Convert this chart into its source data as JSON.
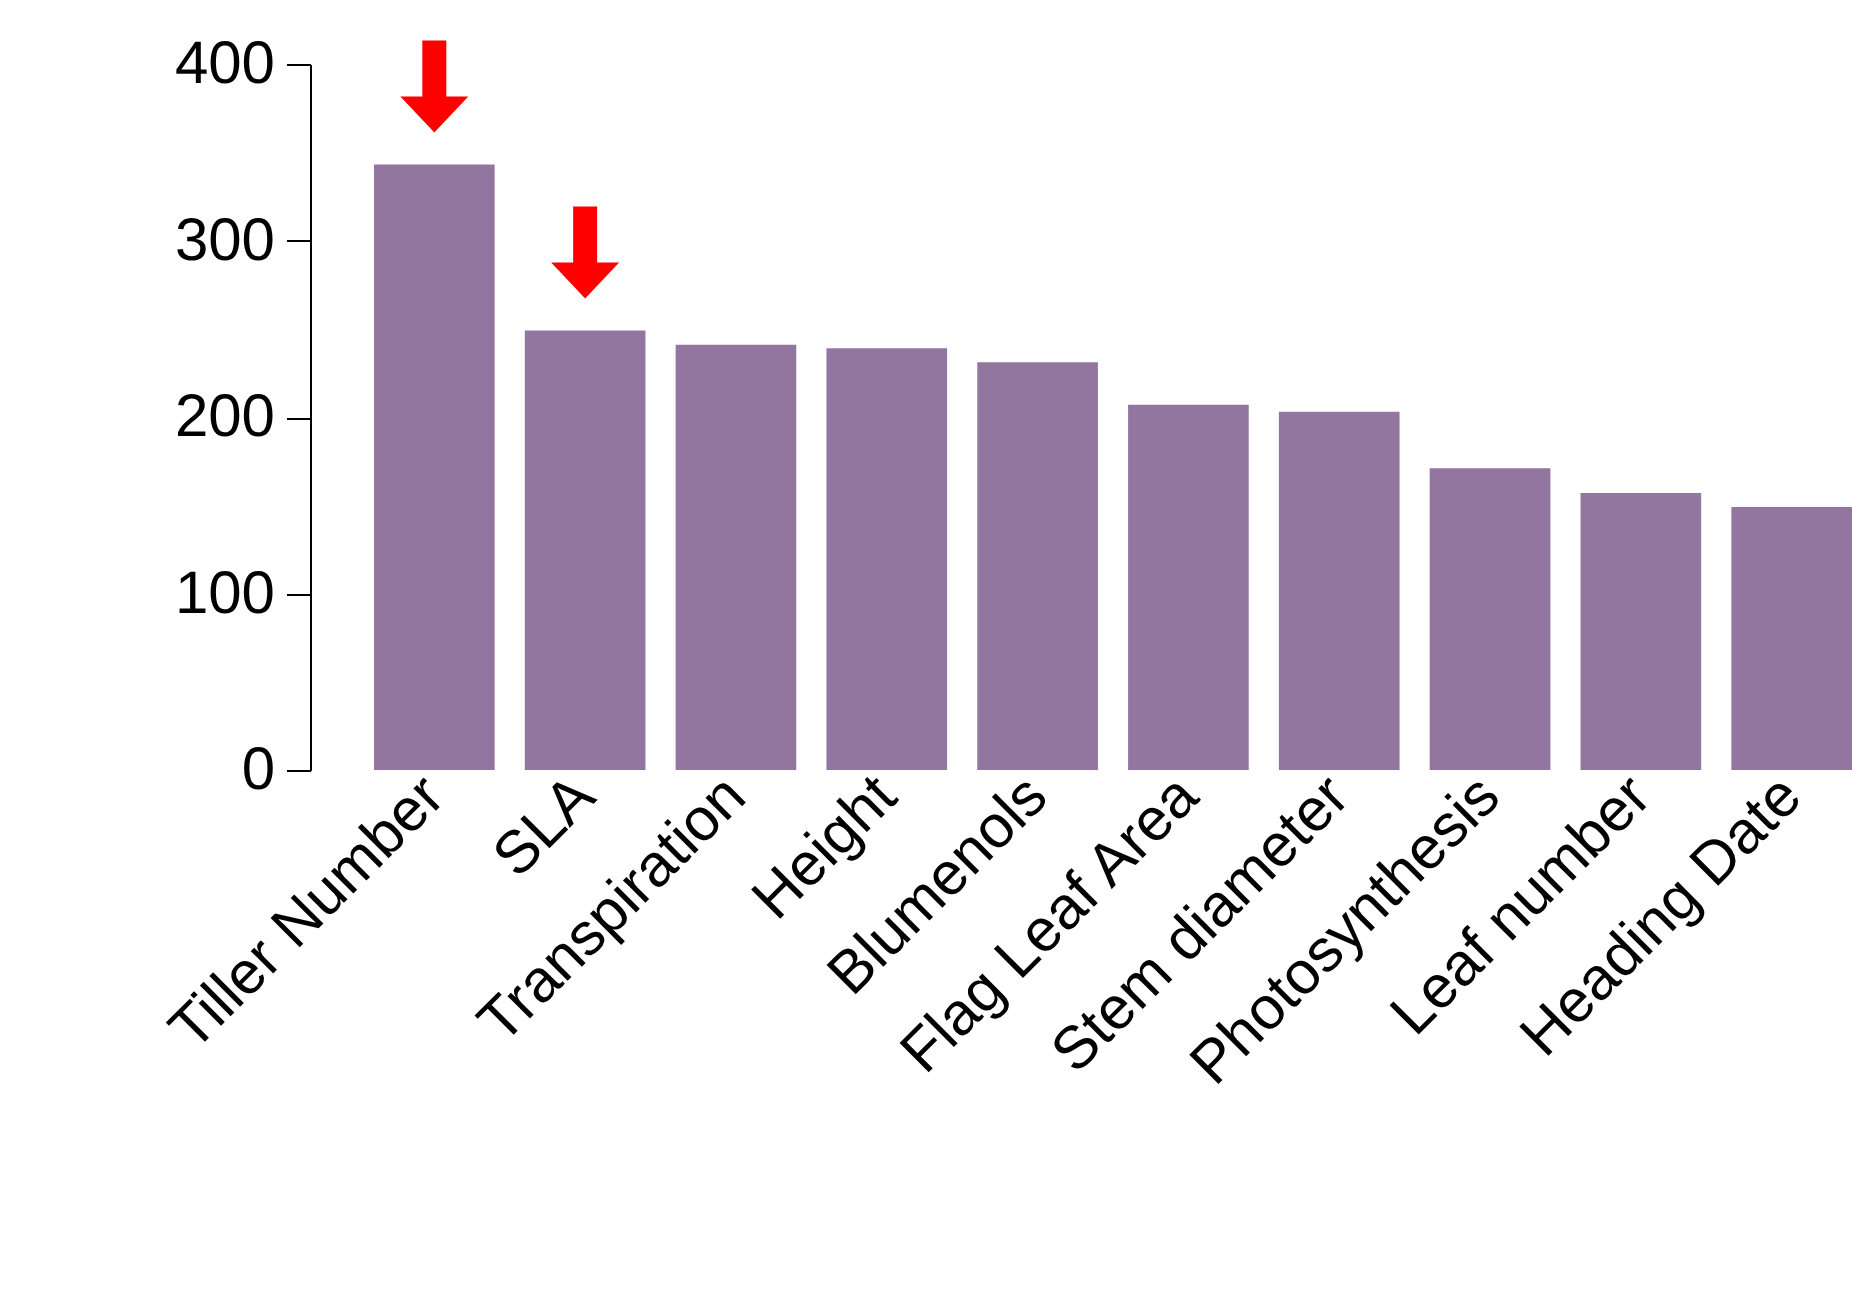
{
  "chart_data": {
    "type": "bar",
    "categories": [
      "Tiller Number",
      "SLA",
      "Transpiration",
      "Height",
      "Blumenols",
      "Flag Leaf Area",
      "Stem diameter",
      "Photosynthesis",
      "Leaf number",
      "Heading Date"
    ],
    "values": [
      343,
      249,
      241,
      239,
      231,
      207,
      203,
      171,
      157,
      149
    ],
    "color": "#9376a0",
    "ylim": [
      0,
      400
    ],
    "yticks": [
      0,
      100,
      200,
      300,
      400
    ],
    "grid": false
  }
}
